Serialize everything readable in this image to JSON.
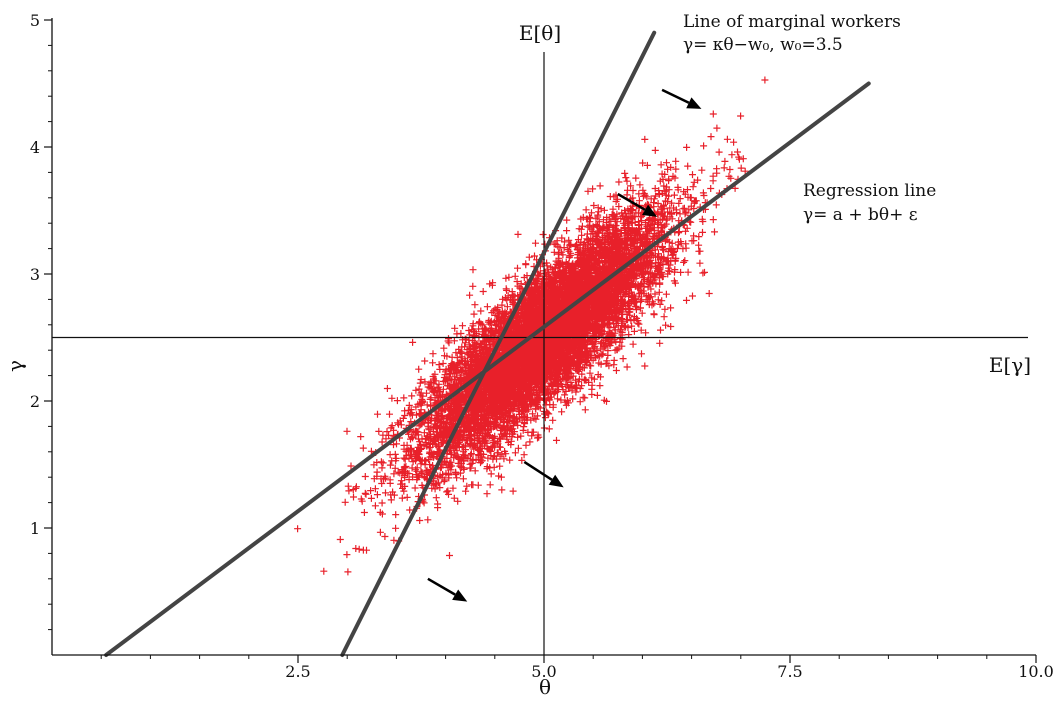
{
  "chart_data": {
    "type": "scatter",
    "xlabel": "θ",
    "ylabel": "γ",
    "xlim": [
      0,
      10
    ],
    "ylim": [
      0,
      5
    ],
    "x_ticks": [
      {
        "value": 2.5,
        "label": "2.5"
      },
      {
        "value": 5.0,
        "label": "5.0"
      },
      {
        "value": 7.5,
        "label": "7.5"
      },
      {
        "value": 10.0,
        "label": "10.0"
      }
    ],
    "y_ticks": [
      {
        "value": 1,
        "label": "1"
      },
      {
        "value": 2,
        "label": "2"
      },
      {
        "value": 3,
        "label": "3"
      },
      {
        "value": 4,
        "label": "4"
      },
      {
        "value": 5,
        "label": "5"
      }
    ],
    "grid": false,
    "point_color": "#e8202a",
    "line_color": "#444444",
    "cloud": {
      "center": [
        5.0,
        2.5
      ],
      "sd_theta": 0.62,
      "sd_gamma": 0.48,
      "correlation": 0.84,
      "n_points": 9000
    },
    "reference_lines": {
      "e_theta": {
        "x": 5.0,
        "label": "E[θ]"
      },
      "e_gamma": {
        "y": 2.5,
        "label": "E[γ]"
      }
    },
    "lines": [
      {
        "id": "marginal",
        "x": [
          2.95,
          6.12
        ],
        "y": [
          0.0,
          4.9
        ],
        "label_lines": [
          "Line of marginal workers",
          "γ= κθ−w₀,  w₀=3.5"
        ]
      },
      {
        "id": "regression",
        "x": [
          0.55,
          8.3
        ],
        "y": [
          0.0,
          4.5
        ],
        "label_lines": [
          "Regression line",
          "γ= a + bθ+ ε"
        ]
      }
    ],
    "arrows": [
      {
        "from": [
          6.2,
          4.45
        ],
        "to": [
          6.6,
          4.3
        ]
      },
      {
        "from": [
          5.75,
          3.63
        ],
        "to": [
          6.15,
          3.45
        ]
      },
      {
        "from": [
          4.8,
          1.52
        ],
        "to": [
          5.2,
          1.32
        ]
      },
      {
        "from": [
          3.82,
          0.6
        ],
        "to": [
          4.22,
          0.42
        ]
      }
    ]
  }
}
